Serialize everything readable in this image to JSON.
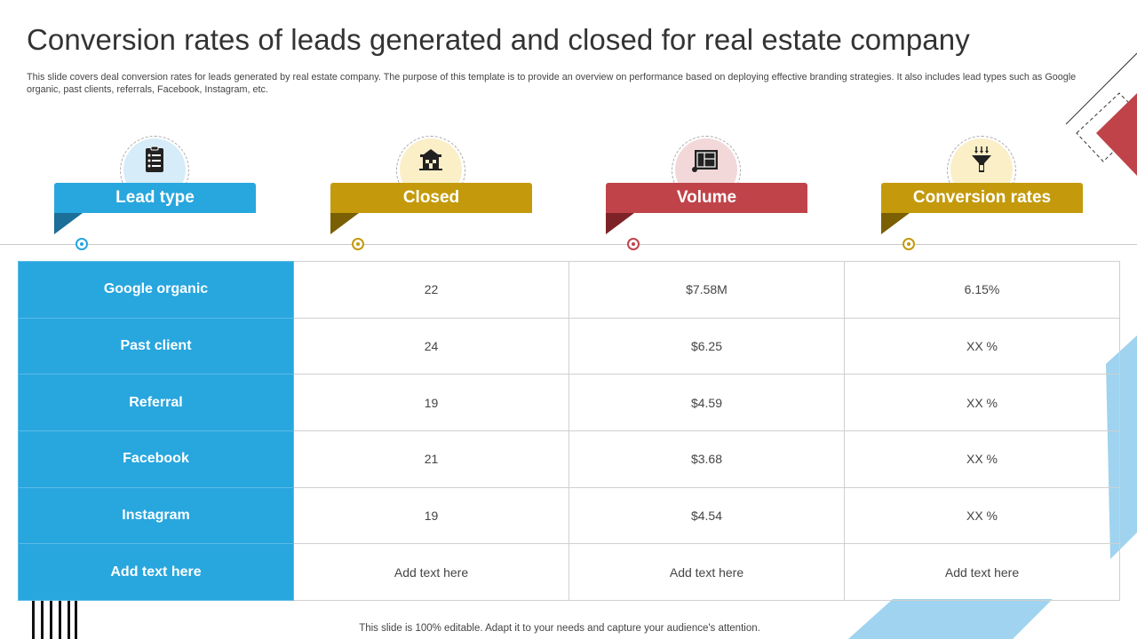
{
  "title": "Conversion rates of leads generated and closed for real estate company",
  "subtitle": "This slide covers deal conversion rates for leads generated by real estate company. The purpose of this template is to provide an overview on performance based on deploying effective branding strategies. It also includes lead types such as Google organic, past clients, referrals, Facebook, Instagram, etc.",
  "headers": [
    {
      "label": "Lead type",
      "icon": "checklist-icon",
      "color": "#28a6de",
      "fold_color": "#1b6f98",
      "circle_color": "#d6ecf8"
    },
    {
      "label": "Closed",
      "icon": "house-icon",
      "color": "#c49a0c",
      "fold_color": "#7a5f05",
      "circle_color": "#fbefc8"
    },
    {
      "label": "Volume",
      "icon": "blueprint-icon",
      "color": "#c0434a",
      "fold_color": "#7d2328",
      "circle_color": "#f3d8da"
    },
    {
      "label": "Conversion rates",
      "icon": "funnel-icon",
      "color": "#c49a0c",
      "fold_color": "#7a5f05",
      "circle_color": "#fbefc8"
    }
  ],
  "rows": [
    {
      "lead": "Google organic",
      "closed": "22",
      "volume": "$7.58M",
      "rate": "6.15%"
    },
    {
      "lead": "Past client",
      "closed": "24",
      "volume": "$6.25",
      "rate": "XX %"
    },
    {
      "lead": "Referral",
      "closed": "19",
      "volume": "$4.59",
      "rate": "XX %"
    },
    {
      "lead": "Facebook",
      "closed": "21",
      "volume": "$3.68",
      "rate": "XX %"
    },
    {
      "lead": "Instagram",
      "closed": "19",
      "volume": "$4.54",
      "rate": "XX %"
    },
    {
      "lead": "Add text here",
      "closed": "Add text here",
      "volume": "Add text here",
      "rate": "Add text here"
    }
  ],
  "footer": "This slide is 100% editable. Adapt it to your needs and capture your audience's attention."
}
